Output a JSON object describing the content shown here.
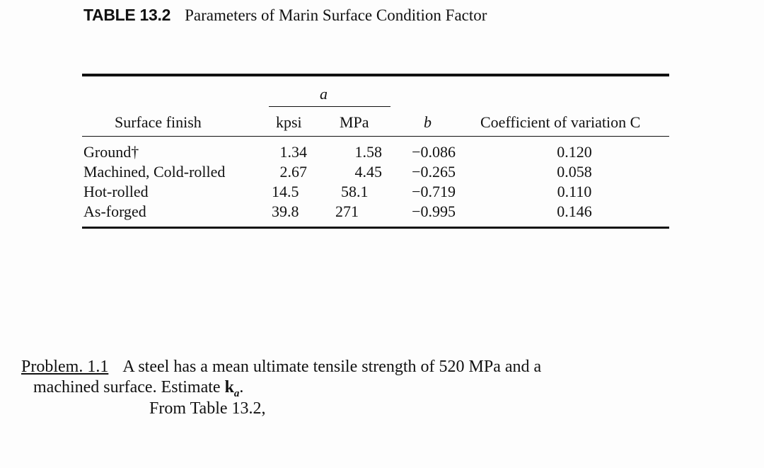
{
  "table": {
    "label": "TABLE 13.2",
    "title": "Parameters of Marin Surface Condition Factor",
    "group_header": "a",
    "headers": {
      "surface_finish": "Surface finish",
      "kpsi": "kpsi",
      "mpa": "MPa",
      "b": "b",
      "cov": "Coefficient of variation C"
    },
    "rows": [
      {
        "finish": "Ground†",
        "kpsi": "1.34",
        "mpa": "1.58",
        "b": "−0.086",
        "cov": "0.120"
      },
      {
        "finish": "Machined, Cold-rolled",
        "kpsi": "2.67",
        "mpa": "4.45",
        "b": "−0.265",
        "cov": "0.058"
      },
      {
        "finish": "Hot-rolled",
        "kpsi": "14.5",
        "mpa": "58.1",
        "b": "−0.719",
        "cov": "0.110"
      },
      {
        "finish": "As-forged",
        "kpsi": "39.8",
        "mpa": "271",
        "b": "−0.995",
        "cov": "0.146"
      }
    ]
  },
  "problem": {
    "label": "Problem. 1.1",
    "line1": "A steel has a mean ultimate tensile strength of 520 MPa and a",
    "line2_text": "machined surface. Estimate ",
    "line2_symbol": "k",
    "line2_sub": "a",
    "line2_end": ".",
    "line3": "From Table 13.2,"
  }
}
